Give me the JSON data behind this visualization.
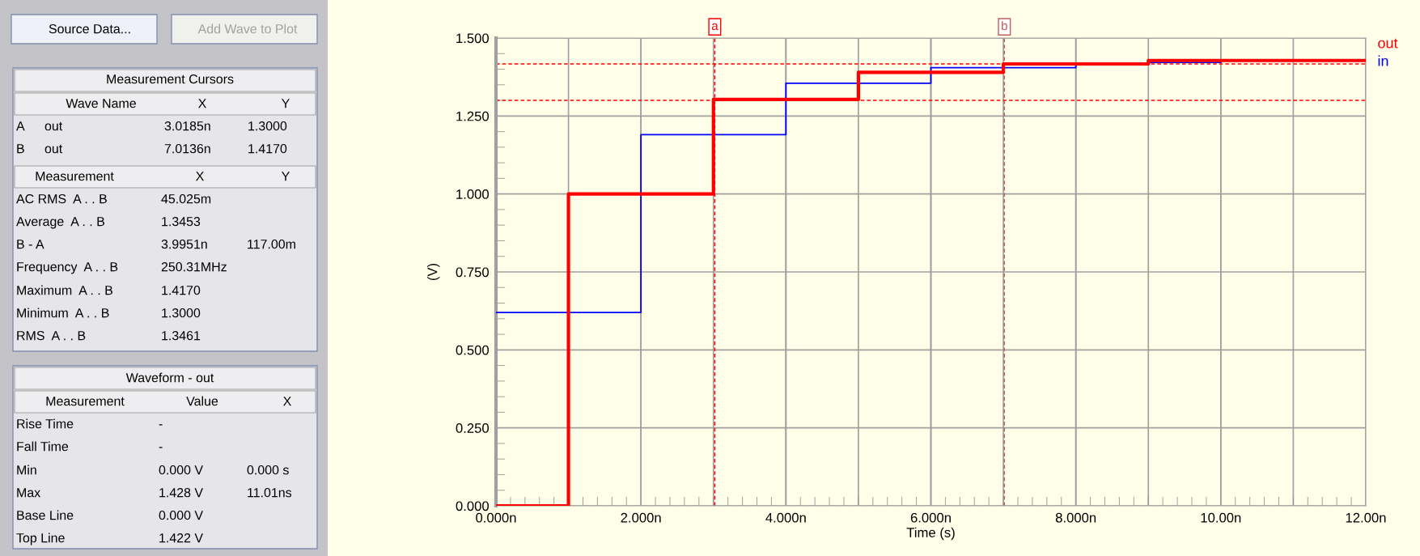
{
  "chart_data": [
    {
      "type": "other",
      "annotations": [
        "Source Data...",
        "Add Wave to Plot",
        "Measurement Cursors",
        "Wave Name",
        "X",
        "Y",
        "A",
        "out",
        "3.0185n",
        "1.3000",
        "B",
        "out",
        "7.0136n",
        "1.4170",
        "Measurement",
        "X",
        "Y",
        "AC RMS  A . . B",
        "45.025m",
        "Average  A . . B",
        "1.3453",
        "B - A",
        "3.9951n",
        "117.00m",
        "Frequency  A . . B",
        "250.31MHz",
        "Maximum  A . . B",
        "1.4170",
        "Minimum  A . . B",
        "1.3000",
        "RMS  A . . B",
        "1.3461",
        "Waveform - out",
        "Measurement",
        "Value",
        "X",
        "Rise Time",
        "-",
        "Fall Time",
        "-",
        "Min",
        "0.000 V",
        "0.000 s",
        "Max",
        "1.428 V",
        "11.01ns",
        "Base Line",
        "0.000 V",
        "Top Line",
        "1.422 V"
      ]
    },
    {
      "type": "step",
      "xlabel": "Time (s)",
      "ylabel": "(V)",
      "xlim": [
        0,
        12
      ],
      "ylim": [
        0,
        1.5
      ],
      "xticks": [
        {
          "value": 0,
          "label": "0.000n"
        },
        {
          "value": 2,
          "label": "2.000n"
        },
        {
          "value": 4,
          "label": "4.000n"
        },
        {
          "value": 6,
          "label": "6.000n"
        },
        {
          "value": 8,
          "label": "8.000n"
        },
        {
          "value": 10,
          "label": "10.00n"
        },
        {
          "value": 12,
          "label": "12.00n"
        }
      ],
      "yticks": [
        {
          "value": 0,
          "label": "0.000"
        },
        {
          "value": 0.25,
          "label": "0.250"
        },
        {
          "value": 0.5,
          "label": "0.500"
        },
        {
          "value": 0.75,
          "label": "0.750"
        },
        {
          "value": 1.0,
          "label": "1.000"
        },
        {
          "value": 1.25,
          "label": "1.250"
        },
        {
          "value": 1.5,
          "label": "1.500"
        }
      ],
      "series": [
        {
          "name": "out",
          "color": "#ff0000",
          "x": [
            0,
            1,
            3,
            5,
            7,
            9,
            12
          ],
          "values": [
            0,
            1.0,
            1.303,
            1.39,
            1.417,
            1.428,
            1.428
          ]
        },
        {
          "name": "in",
          "color": "#0000ff",
          "x": [
            0,
            2,
            4,
            6,
            8,
            9,
            10
          ],
          "values": [
            0.62,
            1.19,
            1.355,
            1.405,
            1.417,
            1.422,
            1.422
          ]
        }
      ],
      "ref_lines": [
        {
          "axis": "y",
          "value": 1.3,
          "color": "#ff0000",
          "line_style": "dashed"
        },
        {
          "axis": "y",
          "value": 1.417,
          "color": "#ff0000",
          "line_style": "dashed"
        },
        {
          "axis": "x",
          "value": 3.0185,
          "label": "a",
          "color": "#ff0000",
          "line_style": "dashed"
        },
        {
          "axis": "x",
          "value": 7.0136,
          "label": "b",
          "color": "#c06060",
          "line_style": "dashed"
        }
      ],
      "grid": true,
      "legend": "top right"
    }
  ]
}
